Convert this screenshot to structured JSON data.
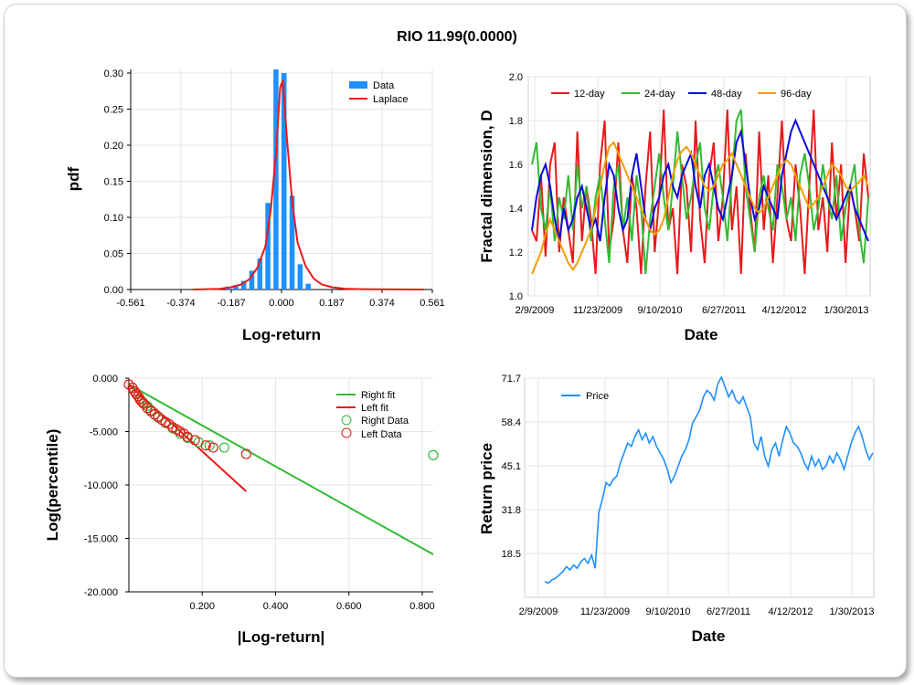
{
  "title": "RIO 11.99(0.0000)",
  "chart_data": [
    {
      "type": "bar",
      "name": "pdf histogram",
      "xlabel": "Log-return",
      "ylabel": "pdf",
      "xlim": [
        -0.561,
        0.561
      ],
      "ylim": [
        0,
        0.305
      ],
      "xticks": [
        "-0.561",
        "-0.374",
        "-0.187",
        "0.000",
        "0.187",
        "0.374",
        "0.561"
      ],
      "yticks": [
        "0.00",
        "0.05",
        "0.10",
        "0.15",
        "0.20",
        "0.25",
        "0.30"
      ],
      "legend": [
        "Data",
        "Laplace"
      ],
      "series": [
        {
          "name": "Data",
          "color": "#1e90ff",
          "bins": [
            -0.24,
            -0.21,
            -0.18,
            -0.15,
            -0.12,
            -0.09,
            -0.06,
            -0.03,
            0.0,
            0.03,
            0.06,
            0.09
          ],
          "values": [
            0.002,
            0.004,
            0.006,
            0.012,
            0.026,
            0.043,
            0.12,
            0.305,
            0.3,
            0.13,
            0.035,
            0.008
          ],
          "bin_width": 0.0187
        },
        {
          "name": "Laplace",
          "color": "#e81a1a",
          "x": [
            -0.33,
            -0.28,
            -0.23,
            -0.19,
            -0.15,
            -0.12,
            -0.09,
            -0.06,
            -0.04,
            -0.02,
            -0.005,
            0.005,
            0.02,
            0.04,
            0.06,
            0.09,
            0.12,
            0.15,
            0.19,
            0.24,
            0.3,
            0.37,
            0.45,
            0.53
          ],
          "y": [
            0.0,
            0.0005,
            0.001,
            0.003,
            0.007,
            0.014,
            0.03,
            0.06,
            0.11,
            0.19,
            0.28,
            0.29,
            0.21,
            0.12,
            0.065,
            0.032,
            0.015,
            0.007,
            0.003,
            0.001,
            0.0005,
            0.0003,
            0.0001,
            0.0
          ]
        }
      ]
    },
    {
      "type": "line",
      "name": "fractal dimension",
      "xlabel": "Date",
      "ylabel": "Fractal dimension, D",
      "ylim": [
        1.0,
        2.0
      ],
      "xticks": [
        "2/9/2009",
        "11/23/2009",
        "9/10/2010",
        "6/27/2011",
        "4/12/2012",
        "1/30/2013"
      ],
      "yticks": [
        "1.0",
        "1.2",
        "1.4",
        "1.6",
        "1.8",
        "2.0"
      ],
      "legend": [
        "12-day",
        "24-day",
        "48-day",
        "96-day"
      ],
      "series": [
        {
          "name": "12-day",
          "color": "#e81a1a",
          "values": [
            1.3,
            1.25,
            1.55,
            1.18,
            1.6,
            1.7,
            1.2,
            1.45,
            1.3,
            1.15,
            1.75,
            1.25,
            1.5,
            1.35,
            1.1,
            1.6,
            1.8,
            1.2,
            1.35,
            1.7,
            1.3,
            1.15,
            1.55,
            1.4,
            1.1,
            1.5,
            1.75,
            1.2,
            1.45,
            1.85,
            1.3,
            1.4,
            1.1,
            1.6,
            1.5,
            1.2,
            1.8,
            1.35,
            1.15,
            1.55,
            1.7,
            1.25,
            1.45,
            1.85,
            1.3,
            1.5,
            1.1,
            1.65,
            1.4,
            1.2,
            1.75,
            1.3,
            1.55,
            1.15,
            1.45,
            1.8,
            1.35,
            1.25,
            1.6,
            1.4,
            1.1,
            1.5,
            1.85,
            1.3,
            1.45,
            1.2,
            1.7,
            1.35,
            1.6,
            1.15,
            1.5,
            1.4,
            1.25,
            1.65,
            1.45
          ]
        },
        {
          "name": "24-day",
          "color": "#33bb33",
          "values": [
            1.6,
            1.7,
            1.4,
            1.3,
            1.5,
            1.25,
            1.45,
            1.35,
            1.55,
            1.3,
            1.6,
            1.4,
            1.5,
            1.25,
            1.45,
            1.55,
            1.35,
            1.15,
            1.5,
            1.6,
            1.3,
            1.45,
            1.25,
            1.55,
            1.4,
            1.1,
            1.35,
            1.5,
            1.65,
            1.45,
            1.3,
            1.5,
            1.75,
            1.55,
            1.35,
            1.45,
            1.6,
            1.7,
            1.4,
            1.3,
            1.5,
            1.6,
            1.45,
            1.25,
            1.55,
            1.8,
            1.85,
            1.5,
            1.35,
            1.2,
            1.45,
            1.55,
            1.4,
            1.3,
            1.6,
            1.5,
            1.35,
            1.45,
            1.25,
            1.55,
            1.65,
            1.5,
            1.3,
            1.4,
            1.6,
            1.45,
            1.35,
            1.55,
            1.25,
            1.4,
            1.5,
            1.6,
            1.3,
            1.15,
            1.45
          ]
        },
        {
          "name": "48-day",
          "color": "#0a0ae0",
          "values": [
            1.3,
            1.45,
            1.55,
            1.6,
            1.5,
            1.35,
            1.25,
            1.4,
            1.3,
            1.35,
            1.45,
            1.5,
            1.4,
            1.3,
            1.35,
            1.25,
            1.45,
            1.6,
            1.55,
            1.4,
            1.3,
            1.35,
            1.55,
            1.65,
            1.5,
            1.35,
            1.3,
            1.4,
            1.45,
            1.55,
            1.6,
            1.5,
            1.45,
            1.55,
            1.6,
            1.65,
            1.5,
            1.4,
            1.55,
            1.6,
            1.5,
            1.4,
            1.35,
            1.45,
            1.55,
            1.7,
            1.75,
            1.6,
            1.45,
            1.35,
            1.4,
            1.5,
            1.45,
            1.4,
            1.35,
            1.55,
            1.65,
            1.75,
            1.8,
            1.75,
            1.7,
            1.65,
            1.6,
            1.55,
            1.5,
            1.45,
            1.4,
            1.35,
            1.4,
            1.45,
            1.5,
            1.4,
            1.35,
            1.3,
            1.25
          ]
        },
        {
          "name": "96-day",
          "color": "#f0a000",
          "values": [
            1.1,
            1.15,
            1.2,
            1.28,
            1.35,
            1.3,
            1.25,
            1.2,
            1.15,
            1.12,
            1.15,
            1.2,
            1.25,
            1.3,
            1.4,
            1.5,
            1.6,
            1.68,
            1.7,
            1.65,
            1.6,
            1.55,
            1.5,
            1.45,
            1.4,
            1.35,
            1.3,
            1.28,
            1.3,
            1.35,
            1.45,
            1.55,
            1.62,
            1.66,
            1.68,
            1.65,
            1.6,
            1.55,
            1.5,
            1.48,
            1.5,
            1.55,
            1.6,
            1.62,
            1.65,
            1.6,
            1.55,
            1.5,
            1.45,
            1.4,
            1.38,
            1.4,
            1.45,
            1.5,
            1.55,
            1.6,
            1.62,
            1.6,
            1.55,
            1.5,
            1.45,
            1.4,
            1.42,
            1.45,
            1.5,
            1.55,
            1.6,
            1.58,
            1.55,
            1.5,
            1.48,
            1.5,
            1.52,
            1.55,
            1.5
          ]
        }
      ]
    },
    {
      "type": "scatter",
      "name": "tail fit",
      "xlabel": "|Log-return|",
      "ylabel": "Log(percentile)",
      "xlim": [
        0,
        0.83
      ],
      "ylim": [
        -20.0,
        0.0
      ],
      "xticks": [
        "0.200",
        "0.400",
        "0.600",
        "0.800"
      ],
      "yticks": [
        "0.000",
        "-5.000",
        "-10.000",
        "-15.000",
        "-20.000"
      ],
      "legend": [
        "Right fit",
        "Left fit",
        "Right Data",
        "Left Data"
      ],
      "series": [
        {
          "name": "Right fit",
          "color": "#33bb33",
          "line": [
            [
              0.0,
              -0.6
            ],
            [
              0.83,
              -16.5
            ]
          ]
        },
        {
          "name": "Left fit",
          "color": "#e81a1a",
          "line": [
            [
              0.0,
              -0.6
            ],
            [
              0.32,
              -10.6
            ]
          ]
        },
        {
          "name": "Right Data",
          "color": "#33bb33",
          "x": [
            0.02,
            0.03,
            0.04,
            0.05,
            0.06,
            0.07,
            0.08,
            0.1,
            0.12,
            0.14,
            0.16,
            0.19,
            0.22,
            0.26,
            0.83
          ],
          "y": [
            -1.4,
            -1.9,
            -2.3,
            -2.6,
            -3.0,
            -3.4,
            -3.7,
            -4.2,
            -4.7,
            -5.2,
            -5.6,
            -6.0,
            -6.3,
            -6.5,
            -7.2
          ]
        },
        {
          "name": "Left Data",
          "color": "#e81a1a",
          "x": [
            0.0,
            0.01,
            0.015,
            0.02,
            0.025,
            0.03,
            0.035,
            0.04,
            0.05,
            0.06,
            0.07,
            0.08,
            0.09,
            0.1,
            0.11,
            0.12,
            0.13,
            0.14,
            0.15,
            0.16,
            0.18,
            0.21,
            0.23,
            0.32
          ],
          "y": [
            -0.6,
            -0.9,
            -1.2,
            -1.5,
            -1.7,
            -2.0,
            -2.2,
            -2.4,
            -2.8,
            -3.1,
            -3.4,
            -3.6,
            -3.9,
            -4.1,
            -4.3,
            -4.6,
            -4.8,
            -5.0,
            -5.2,
            -5.5,
            -5.8,
            -6.3,
            -6.5,
            -7.1
          ]
        }
      ]
    },
    {
      "type": "line",
      "name": "return price",
      "xlabel": "Date",
      "ylabel": "Return price",
      "ylim": [
        5.2,
        71.7
      ],
      "xticks": [
        "2/9/2009",
        "11/23/2009",
        "9/10/2010",
        "6/27/2011",
        "4/12/2012",
        "1/30/2013"
      ],
      "yticks": [
        "71.7",
        "58.4",
        "45.1",
        "31.8",
        "18.5"
      ],
      "legend": [
        "Price"
      ],
      "series": [
        {
          "name": "Price",
          "color": "#1e90ff",
          "values": [
            10,
            9.5,
            10.5,
            11,
            12,
            13,
            14.5,
            13.5,
            15,
            14,
            16,
            17,
            15.5,
            18,
            14,
            31,
            35,
            40,
            39,
            41,
            42,
            46,
            49,
            52,
            51,
            54,
            56,
            53,
            55,
            52,
            54,
            51,
            49,
            47,
            44,
            40,
            42,
            45,
            48,
            50,
            53,
            58,
            60,
            62,
            66,
            68,
            67,
            65,
            70,
            72,
            69,
            66,
            68,
            65,
            64,
            66,
            63,
            60,
            52,
            50,
            54,
            48,
            45,
            50,
            52,
            48,
            53,
            57,
            55,
            52,
            51,
            49,
            46,
            44,
            48,
            45,
            47,
            44,
            45,
            48,
            46,
            49,
            47,
            44,
            48,
            52,
            55,
            57,
            54,
            50,
            47,
            49
          ]
        }
      ]
    }
  ]
}
